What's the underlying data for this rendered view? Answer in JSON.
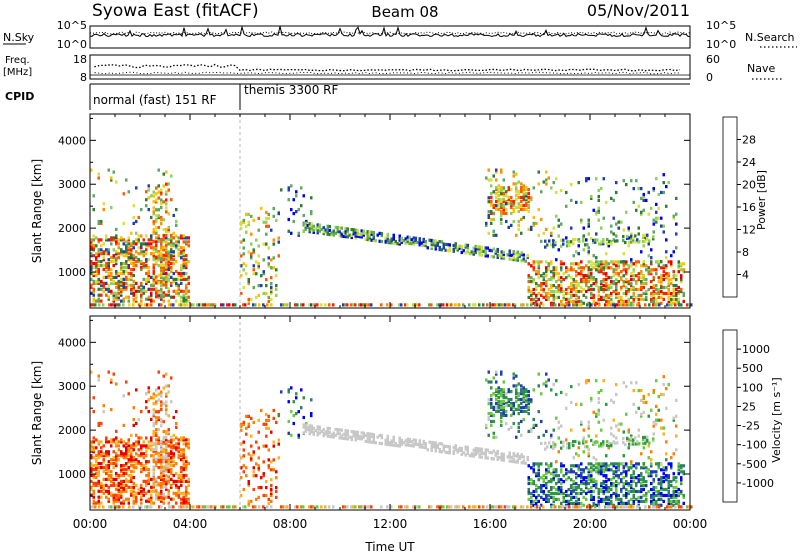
{
  "header": {
    "station": "Syowa East (fitACF)",
    "beam": "Beam 08",
    "date": "05/Nov/2011"
  },
  "noise_panel": {
    "left_label": "N.Sky",
    "right_label": "N.Search",
    "right_line_style": "dotted",
    "left_ticks": [
      "10^5",
      "10^0"
    ],
    "right_ticks": [
      "10^5",
      "10^0"
    ]
  },
  "freq_panel": {
    "left_label_line1": "Freq.",
    "left_label_line2": "[MHz]",
    "right_label": "Nave",
    "right_line_style": "dotted",
    "left_ticks": [
      "18",
      "8"
    ],
    "right_ticks": [
      "60",
      "0"
    ]
  },
  "cpid_panel": {
    "label": "CPID",
    "segments": [
      {
        "start_hour": 0,
        "end_hour": 6.0,
        "name": "normal (fast) 151 RF"
      },
      {
        "start_hour": 6.0,
        "end_hour": 24,
        "name": "themis 3300 RF"
      }
    ]
  },
  "chart_data": [
    {
      "type": "heatmap",
      "title": "",
      "parameter": "Power",
      "xlabel": "",
      "ylabel": "Slant Range [km]",
      "xlim": [
        0,
        24
      ],
      "ylim": [
        180,
        4600
      ],
      "yticks": [
        1000,
        2000,
        3000,
        4000
      ],
      "colorbar": {
        "label": "Power [dB]",
        "ticks": [
          "4",
          "8",
          "12",
          "16",
          "20",
          "24",
          "28"
        ],
        "colors": [
          "#0000ff",
          "#1f3fb4",
          "#2e7d32",
          "#5fa862",
          "#8fd05a",
          "#d9e03a",
          "#ffc000",
          "#ff9000",
          "#ff5a00",
          "#ff2000",
          "#e80000"
        ]
      },
      "regions": [
        {
          "t": [
            0.0,
            4.0
          ],
          "r": [
            300,
            1800
          ],
          "density": 0.45,
          "c": [
            1,
            10
          ]
        },
        {
          "t": [
            0.0,
            3.5
          ],
          "r": [
            1800,
            3300
          ],
          "density": 0.05,
          "c": [
            1,
            8
          ]
        },
        {
          "t": [
            2.5,
            3.2
          ],
          "r": [
            400,
            3000
          ],
          "density": 0.3,
          "c": [
            3,
            9
          ]
        },
        {
          "t": [
            6.0,
            7.5
          ],
          "r": [
            250,
            2500
          ],
          "density": 0.12,
          "c": [
            1,
            8
          ]
        },
        {
          "t": [
            7.5,
            8.8
          ],
          "r": [
            1800,
            3000
          ],
          "density": 0.06,
          "c": [
            0,
            3
          ]
        },
        {
          "t": [
            16.0,
            17.6
          ],
          "r": [
            2300,
            2900
          ],
          "density": 0.4,
          "c": [
            4,
            9
          ]
        },
        {
          "t": [
            15.8,
            18.5
          ],
          "r": [
            1800,
            3300
          ],
          "density": 0.12,
          "c": [
            1,
            7
          ]
        },
        {
          "t": [
            17.5,
            23.8
          ],
          "r": [
            250,
            1200
          ],
          "density": 0.45,
          "c": [
            2,
            10
          ]
        },
        {
          "t": [
            18.5,
            23.5
          ],
          "r": [
            1200,
            3200
          ],
          "density": 0.07,
          "c": [
            0,
            5
          ]
        }
      ],
      "bands": [
        {
          "t": [
            8.5,
            17.5
          ],
          "r0": 2000,
          "r1": 1300,
          "width": 200,
          "density": 0.55,
          "c": [
            0,
            5
          ]
        },
        {
          "t": [
            18.0,
            22.5
          ],
          "r0": 1600,
          "r1": 1750,
          "width": 150,
          "density": 0.3,
          "c": [
            1,
            5
          ]
        },
        {
          "t": [
            0.0,
            24.0
          ],
          "r0": 200,
          "r1": 200,
          "width": 60,
          "density": 0.6,
          "c": [
            1,
            10
          ]
        }
      ]
    },
    {
      "type": "heatmap",
      "title": "",
      "parameter": "Velocity",
      "xlabel": "Time UT",
      "ylabel": "Slant Range [km]",
      "xlim": [
        0,
        24
      ],
      "ylim": [
        180,
        4600
      ],
      "yticks": [
        1000,
        2000,
        3000,
        4000
      ],
      "xticks": [
        "00:00",
        "04:00",
        "08:00",
        "12:00",
        "16:00",
        "20:00",
        "00:00"
      ],
      "colorbar": {
        "label": "Velocity [m s⁻¹]",
        "ticks": [
          "-1000",
          "-500",
          "-100",
          "-25",
          "25",
          "100",
          "500",
          "1000"
        ],
        "colors": [
          "#e80000",
          "#ff4000",
          "#ff8000",
          "#ffb020",
          "#c8c8c8",
          "#c8c8c8",
          "#6acb3a",
          "#2e9a40",
          "#2e7d6b",
          "#1f3fb4",
          "#0000ff"
        ]
      },
      "regions": [
        {
          "t": [
            0.0,
            4.0
          ],
          "r": [
            300,
            1800
          ],
          "density": 0.45,
          "c": [
            0,
            3
          ]
        },
        {
          "t": [
            0.0,
            3.5
          ],
          "r": [
            1800,
            3300
          ],
          "density": 0.05,
          "c": [
            0,
            4
          ]
        },
        {
          "t": [
            2.5,
            3.2
          ],
          "r": [
            400,
            3000
          ],
          "density": 0.3,
          "c": [
            1,
            5
          ]
        },
        {
          "t": [
            6.0,
            7.5
          ],
          "r": [
            250,
            2500
          ],
          "density": 0.12,
          "c": [
            0,
            3
          ]
        },
        {
          "t": [
            7.5,
            8.8
          ],
          "r": [
            1800,
            3000
          ],
          "density": 0.06,
          "c": [
            6,
            10
          ]
        },
        {
          "t": [
            16.0,
            17.6
          ],
          "r": [
            2300,
            2900
          ],
          "density": 0.4,
          "c": [
            6,
            9
          ]
        },
        {
          "t": [
            15.8,
            18.5
          ],
          "r": [
            1800,
            3300
          ],
          "density": 0.12,
          "c": [
            5,
            9
          ]
        },
        {
          "t": [
            17.5,
            23.8
          ],
          "r": [
            250,
            1200
          ],
          "density": 0.45,
          "c": [
            6,
            10
          ]
        },
        {
          "t": [
            18.5,
            23.5
          ],
          "r": [
            1200,
            3200
          ],
          "density": 0.07,
          "c": [
            2,
            7
          ]
        }
      ],
      "bands": [
        {
          "t": [
            8.5,
            17.5
          ],
          "r0": 2000,
          "r1": 1300,
          "width": 200,
          "density": 0.55,
          "c": [
            4,
            5
          ]
        },
        {
          "t": [
            18.0,
            22.5
          ],
          "r0": 1600,
          "r1": 1750,
          "width": 150,
          "density": 0.3,
          "c": [
            4,
            7
          ]
        },
        {
          "t": [
            0.0,
            24.0
          ],
          "r0": 200,
          "r1": 200,
          "width": 60,
          "density": 0.6,
          "c": [
            1,
            6
          ]
        }
      ]
    }
  ]
}
